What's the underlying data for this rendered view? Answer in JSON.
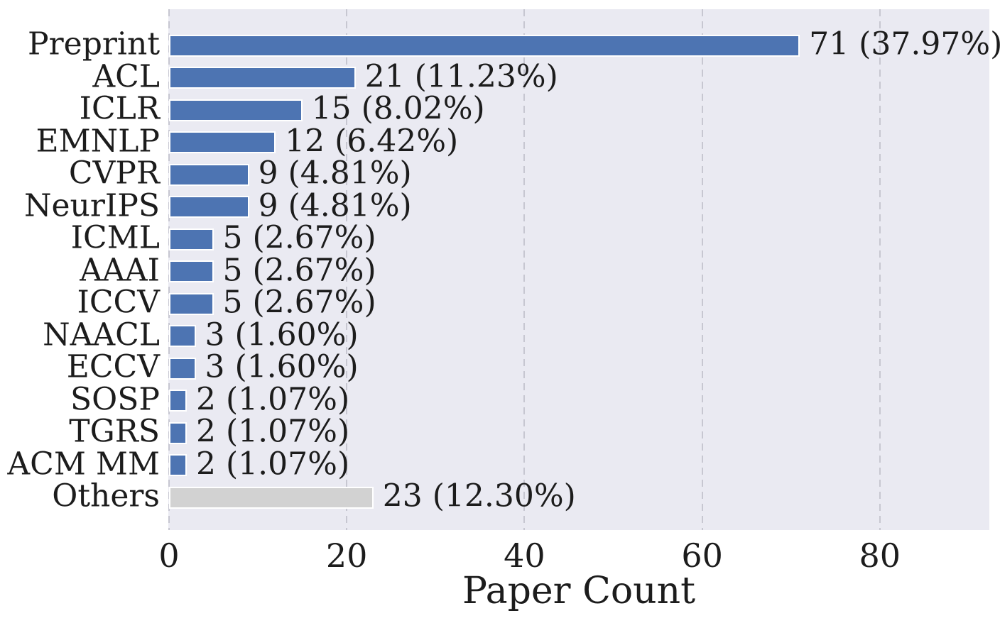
{
  "chart_data": {
    "type": "bar",
    "orientation": "horizontal",
    "xlabel": "Paper Count",
    "categories": [
      "Preprint",
      "ACL",
      "ICLR",
      "EMNLP",
      "CVPR",
      "NeurIPS",
      "ICML",
      "AAAI",
      "ICCV",
      "NAACL",
      "ECCV",
      "SOSP",
      "TGRS",
      "ACM MM",
      "Others"
    ],
    "values": [
      71,
      21,
      15,
      12,
      9,
      9,
      5,
      5,
      5,
      3,
      3,
      2,
      2,
      2,
      23
    ],
    "percentages": [
      37.97,
      11.23,
      8.02,
      6.42,
      4.81,
      4.81,
      2.67,
      2.67,
      2.67,
      1.6,
      1.6,
      1.07,
      1.07,
      1.07,
      12.3
    ],
    "bar_labels": [
      "71 (37.97%)",
      "21 (11.23%)",
      "15 (8.02%)",
      "12 (6.42%)",
      "9 (4.81%)",
      "9 (4.81%)",
      "5 (2.67%)",
      "5 (2.67%)",
      "5 (2.67%)",
      "3 (1.60%)",
      "3 (1.60%)",
      "2 (1.07%)",
      "2 (1.07%)",
      "2 (1.07%)",
      "23 (12.30%)"
    ],
    "bar_colors": [
      "#4d74b2",
      "#4d74b2",
      "#4d74b2",
      "#4d74b2",
      "#4d74b2",
      "#4d74b2",
      "#4d74b2",
      "#4d74b2",
      "#4d74b2",
      "#4d74b2",
      "#4d74b2",
      "#4d74b2",
      "#4d74b2",
      "#4d74b2",
      "#d2d2d2"
    ],
    "x_ticks": [
      0,
      20,
      40,
      60,
      80
    ],
    "x_tick_labels": [
      "0",
      "20",
      "40",
      "60",
      "80"
    ],
    "xlim": [
      0,
      92.3
    ],
    "grid": "vertical-dashed",
    "legend": "none",
    "colors": {
      "bar_blue": "#4d74b2",
      "bar_gray": "#d2d2d2",
      "plot_background": "#eaeaf2",
      "gridline": "#c7c7d1",
      "bar_edge": "#ffffff",
      "text": "#1c1c1c",
      "figure_background": "#ffffff"
    }
  }
}
